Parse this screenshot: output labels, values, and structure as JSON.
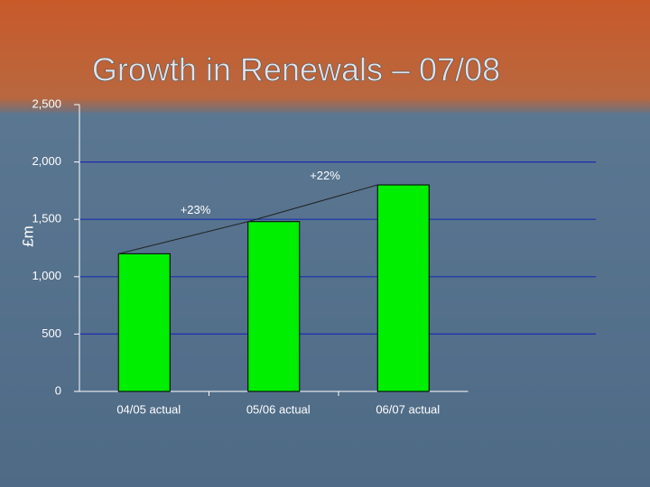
{
  "chart_data": {
    "type": "bar",
    "title": "Growth in Renewals – 07/08",
    "y_label": "£m",
    "categories": [
      "04/05 actual",
      "05/06 actual",
      "06/07 actual"
    ],
    "values": [
      1200,
      1480,
      1800
    ],
    "color": "#00ee00",
    "annotations": [
      "+23%",
      "+22%"
    ],
    "ylim": [
      0,
      2500
    ],
    "yticks": [
      0,
      500,
      {
        "value": 1000,
        "label": "1,000"
      },
      {
        "value": 1500,
        "label": "1,500"
      },
      {
        "value": 2000,
        "label": "2,000"
      },
      {
        "value": 2500,
        "label": "2,500"
      }
    ],
    "grid": true,
    "grid_color": "#1a2fb0"
  }
}
